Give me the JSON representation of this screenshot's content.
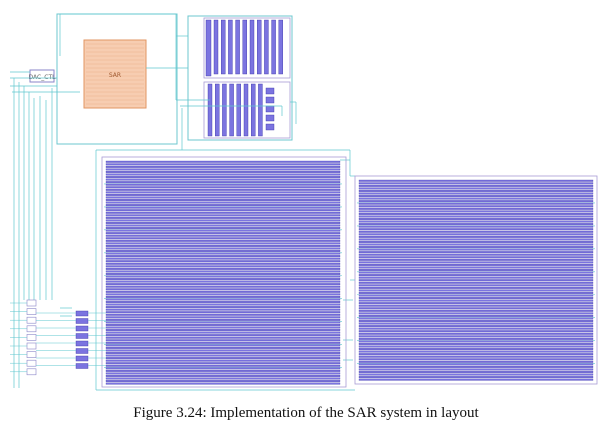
{
  "figure": {
    "caption": "Figure 3.24: Implementation of the SAR system in layout"
  },
  "colors": {
    "wire": "#5fc7cf",
    "wire_dark": "#3aa7b3",
    "metal_fill": "#7b74e0",
    "metal_stroke": "#3b34a8",
    "cell_outline": "#a89bd6",
    "pad_fill": "#f6c9a8",
    "pad_stroke": "#e08a55",
    "bg": "#ffffff"
  },
  "layout": {
    "top_cell_label": "SAR",
    "small_cell_label": "DAC_CTL"
  }
}
